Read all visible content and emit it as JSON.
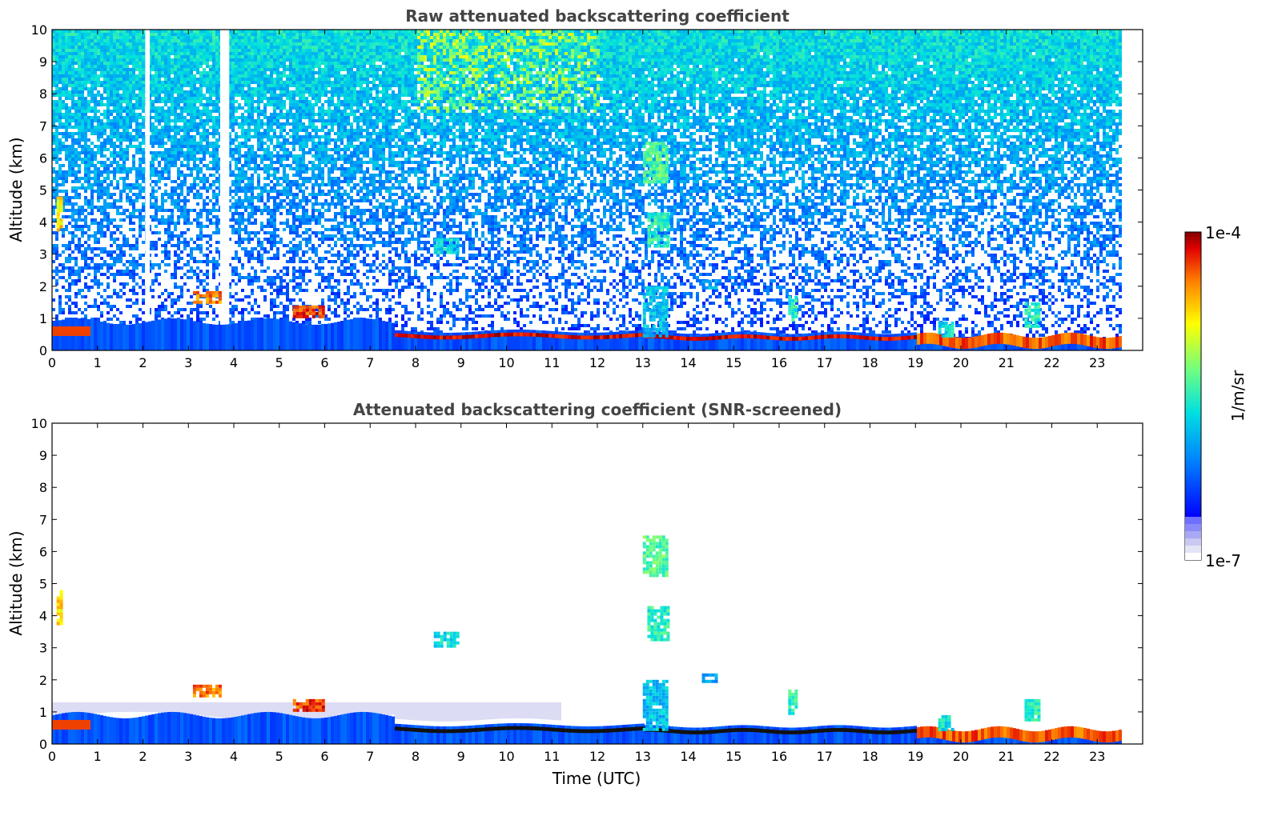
{
  "chart_data": [
    {
      "type": "heatmap",
      "title": "Raw attenuated backscattering coefficient",
      "xlabel": "",
      "ylabel": "Altitude (km)",
      "xlim": [
        0,
        24
      ],
      "ylim": [
        0,
        10
      ],
      "x_ticks": [
        "0",
        "1",
        "2",
        "3",
        "4",
        "5",
        "6",
        "7",
        "8",
        "9",
        "10",
        "11",
        "12",
        "13",
        "14",
        "15",
        "16",
        "17",
        "18",
        "19",
        "20",
        "21",
        "22",
        "23"
      ],
      "y_ticks": [
        "0",
        "1",
        "2",
        "3",
        "4",
        "5",
        "6",
        "7",
        "8",
        "9",
        "10"
      ],
      "data_end_hour": 23.5,
      "noise_background": true,
      "layers": [
        {
          "name": "boundary layer aerosol",
          "x_range": [
            0,
            23.5
          ],
          "altitude_km_top": 0.8
        },
        {
          "name": "aerosol layer",
          "x_range": [
            5.3,
            6.0
          ],
          "altitude_km": 1.2
        },
        {
          "name": "aerosol layer",
          "x_range": [
            3.1,
            3.7
          ],
          "altitude_km": 1.7
        },
        {
          "name": "cloud",
          "x_range": [
            13.0,
            13.5
          ],
          "altitude_km": [
            0.5,
            2.0
          ]
        },
        {
          "name": "cloud",
          "x_range": [
            13.1,
            13.6
          ],
          "altitude_km": [
            3.3,
            4.3
          ]
        },
        {
          "name": "cloud",
          "x_range": [
            13.0,
            13.6
          ],
          "altitude_km": [
            5.3,
            6.5
          ]
        },
        {
          "name": "residual layer",
          "x_range": [
            19.3,
            23.5
          ],
          "altitude_km": [
            0,
            0.5
          ]
        }
      ]
    },
    {
      "type": "heatmap",
      "title": "Attenuated backscattering coefficient (SNR-screened)",
      "xlabel": "Time (UTC)",
      "ylabel": "Altitude (km)",
      "xlim": [
        0,
        24
      ],
      "ylim": [
        0,
        10
      ],
      "x_ticks": [
        "0",
        "1",
        "2",
        "3",
        "4",
        "5",
        "6",
        "7",
        "8",
        "9",
        "10",
        "11",
        "12",
        "13",
        "14",
        "15",
        "16",
        "17",
        "18",
        "19",
        "20",
        "21",
        "22",
        "23"
      ],
      "y_ticks": [
        "0",
        "1",
        "2",
        "3",
        "4",
        "5",
        "6",
        "7",
        "8",
        "9",
        "10"
      ],
      "data_end_hour": 23.5,
      "noise_background": false
    }
  ],
  "colorbar": {
    "label": "1/m/sr",
    "max_label": "1e-4",
    "min_label": "1e-7",
    "scale": "log",
    "range": [
      1e-07,
      0.0001
    ],
    "colormap": "jet"
  },
  "colors": {
    "title": "#444444",
    "axis": "#000000",
    "background": "#ffffff"
  }
}
